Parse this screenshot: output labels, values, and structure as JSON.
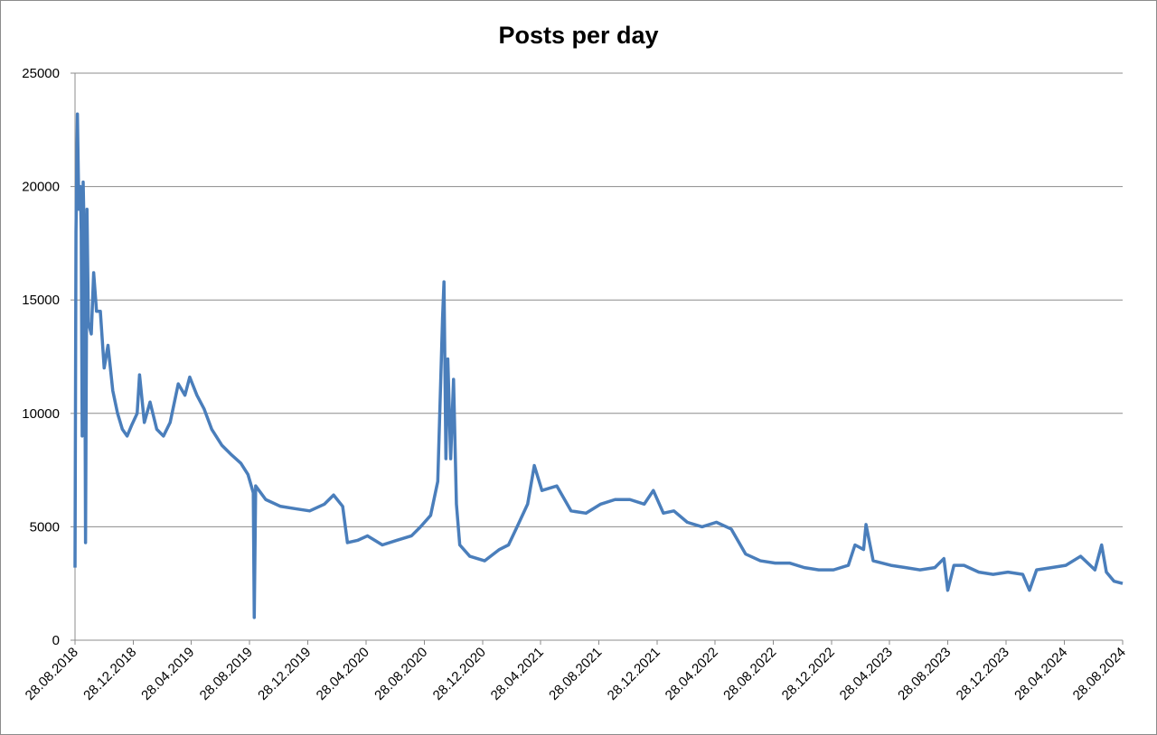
{
  "chart_data": {
    "type": "line",
    "title": "Posts per day",
    "color": "#4a7ebb",
    "grid": true,
    "x": [
      "28.08.2018",
      "30.08.2018",
      "02.09.2018",
      "05.09.2018",
      "08.09.2018",
      "10.09.2018",
      "12.09.2018",
      "14.09.2018",
      "17.09.2018",
      "19.09.2018",
      "22.09.2018",
      "25.09.2018",
      "01.10.2018",
      "06.10.2018",
      "12.10.2018",
      "20.10.2018",
      "28.10.2018",
      "05.11.2018",
      "15.11.2018",
      "25.11.2018",
      "05.12.2018",
      "15.12.2018",
      "25.12.2018",
      "05.01.2019",
      "10.01.2019",
      "20.01.2019",
      "01.02.2019",
      "15.02.2019",
      "01.03.2019",
      "15.03.2019",
      "01.04.2019",
      "15.04.2019",
      "25.04.2019",
      "10.05.2019",
      "25.05.2019",
      "10.06.2019",
      "01.07.2019",
      "20.07.2019",
      "10.08.2019",
      "25.08.2019",
      "05.09.2019",
      "07.09.2019",
      "10.09.2019",
      "01.10.2019",
      "01.11.2019",
      "01.12.2019",
      "01.01.2020",
      "01.02.2020",
      "20.02.2020",
      "10.03.2020",
      "20.03.2020",
      "10.04.2020",
      "01.05.2020",
      "01.06.2020",
      "01.07.2020",
      "01.08.2020",
      "20.08.2020",
      "10.09.2020",
      "25.09.2020",
      "05.10.2020",
      "08.10.2020",
      "12.10.2020",
      "16.10.2020",
      "22.10.2020",
      "28.10.2020",
      "03.11.2020",
      "10.11.2020",
      "01.12.2020",
      "01.01.2021",
      "01.02.2021",
      "20.02.2021",
      "10.03.2021",
      "01.04.2021",
      "15.04.2021",
      "01.05.2021",
      "01.06.2021",
      "01.07.2021",
      "01.08.2021",
      "01.09.2021",
      "01.10.2021",
      "01.11.2021",
      "01.12.2021",
      "20.12.2021",
      "10.01.2022",
      "01.02.2022",
      "01.03.2022",
      "01.04.2022",
      "01.05.2022",
      "01.06.2022",
      "01.07.2022",
      "01.08.2022",
      "01.09.2022",
      "01.10.2022",
      "01.11.2022",
      "01.12.2022",
      "01.01.2023",
      "01.02.2023",
      "15.02.2023",
      "05.03.2023",
      "10.03.2023",
      "25.03.2023",
      "01.05.2023",
      "01.06.2023",
      "01.07.2023",
      "01.08.2023",
      "20.08.2023",
      "28.08.2023",
      "10.09.2023",
      "01.10.2023",
      "01.11.2023",
      "01.12.2023",
      "01.01.2024",
      "01.02.2024",
      "15.02.2024",
      "01.03.2024",
      "01.04.2024",
      "01.05.2024",
      "01.06.2024",
      "01.07.2024",
      "15.07.2024",
      "25.07.2024",
      "10.08.2024",
      "28.08.2024"
    ],
    "values": [
      3200,
      18000,
      23200,
      19000,
      20000,
      18000,
      9000,
      20200,
      17000,
      4300,
      19000,
      14000,
      13500,
      16200,
      14500,
      14500,
      12000,
      13000,
      11000,
      10000,
      9300,
      9000,
      9500,
      10000,
      11700,
      9600,
      10500,
      9300,
      9000,
      9600,
      11300,
      10800,
      11600,
      10800,
      10200,
      9300,
      8600,
      8200,
      7800,
      7300,
      6500,
      1000,
      6800,
      6200,
      5900,
      5800,
      5700,
      6000,
      6400,
      5900,
      4300,
      4400,
      4600,
      4200,
      4400,
      4600,
      5000,
      5500,
      7000,
      14200,
      15800,
      8000,
      12400,
      8000,
      11500,
      6000,
      4200,
      3700,
      3500,
      4000,
      4200,
      5000,
      6000,
      7700,
      6600,
      6800,
      5700,
      5600,
      6000,
      6200,
      6200,
      6000,
      6600,
      5600,
      5700,
      5200,
      5000,
      5200,
      4900,
      3800,
      3500,
      3400,
      3400,
      3200,
      3100,
      3100,
      3300,
      4200,
      4000,
      5100,
      3500,
      3300,
      3200,
      3100,
      3200,
      3600,
      2200,
      3300,
      3300,
      3000,
      2900,
      3000,
      2900,
      2200,
      3100,
      3200,
      3300,
      3700,
      3100,
      4200,
      3000,
      2600,
      2500
    ],
    "xlim": [
      "28.08.2018",
      "28.08.2024"
    ],
    "xticks": [
      "28.08.2018",
      "28.12.2018",
      "28.04.2019",
      "28.08.2019",
      "28.12.2019",
      "28.04.2020",
      "28.08.2020",
      "28.12.2020",
      "28.04.2021",
      "28.08.2021",
      "28.12.2021",
      "28.04.2022",
      "28.08.2022",
      "28.12.2022",
      "28.04.2023",
      "28.08.2023",
      "28.12.2023",
      "28.04.2024",
      "28.08.2024"
    ],
    "ylim": [
      0,
      25000
    ],
    "yticks": [
      0,
      5000,
      10000,
      15000,
      20000,
      25000
    ]
  }
}
